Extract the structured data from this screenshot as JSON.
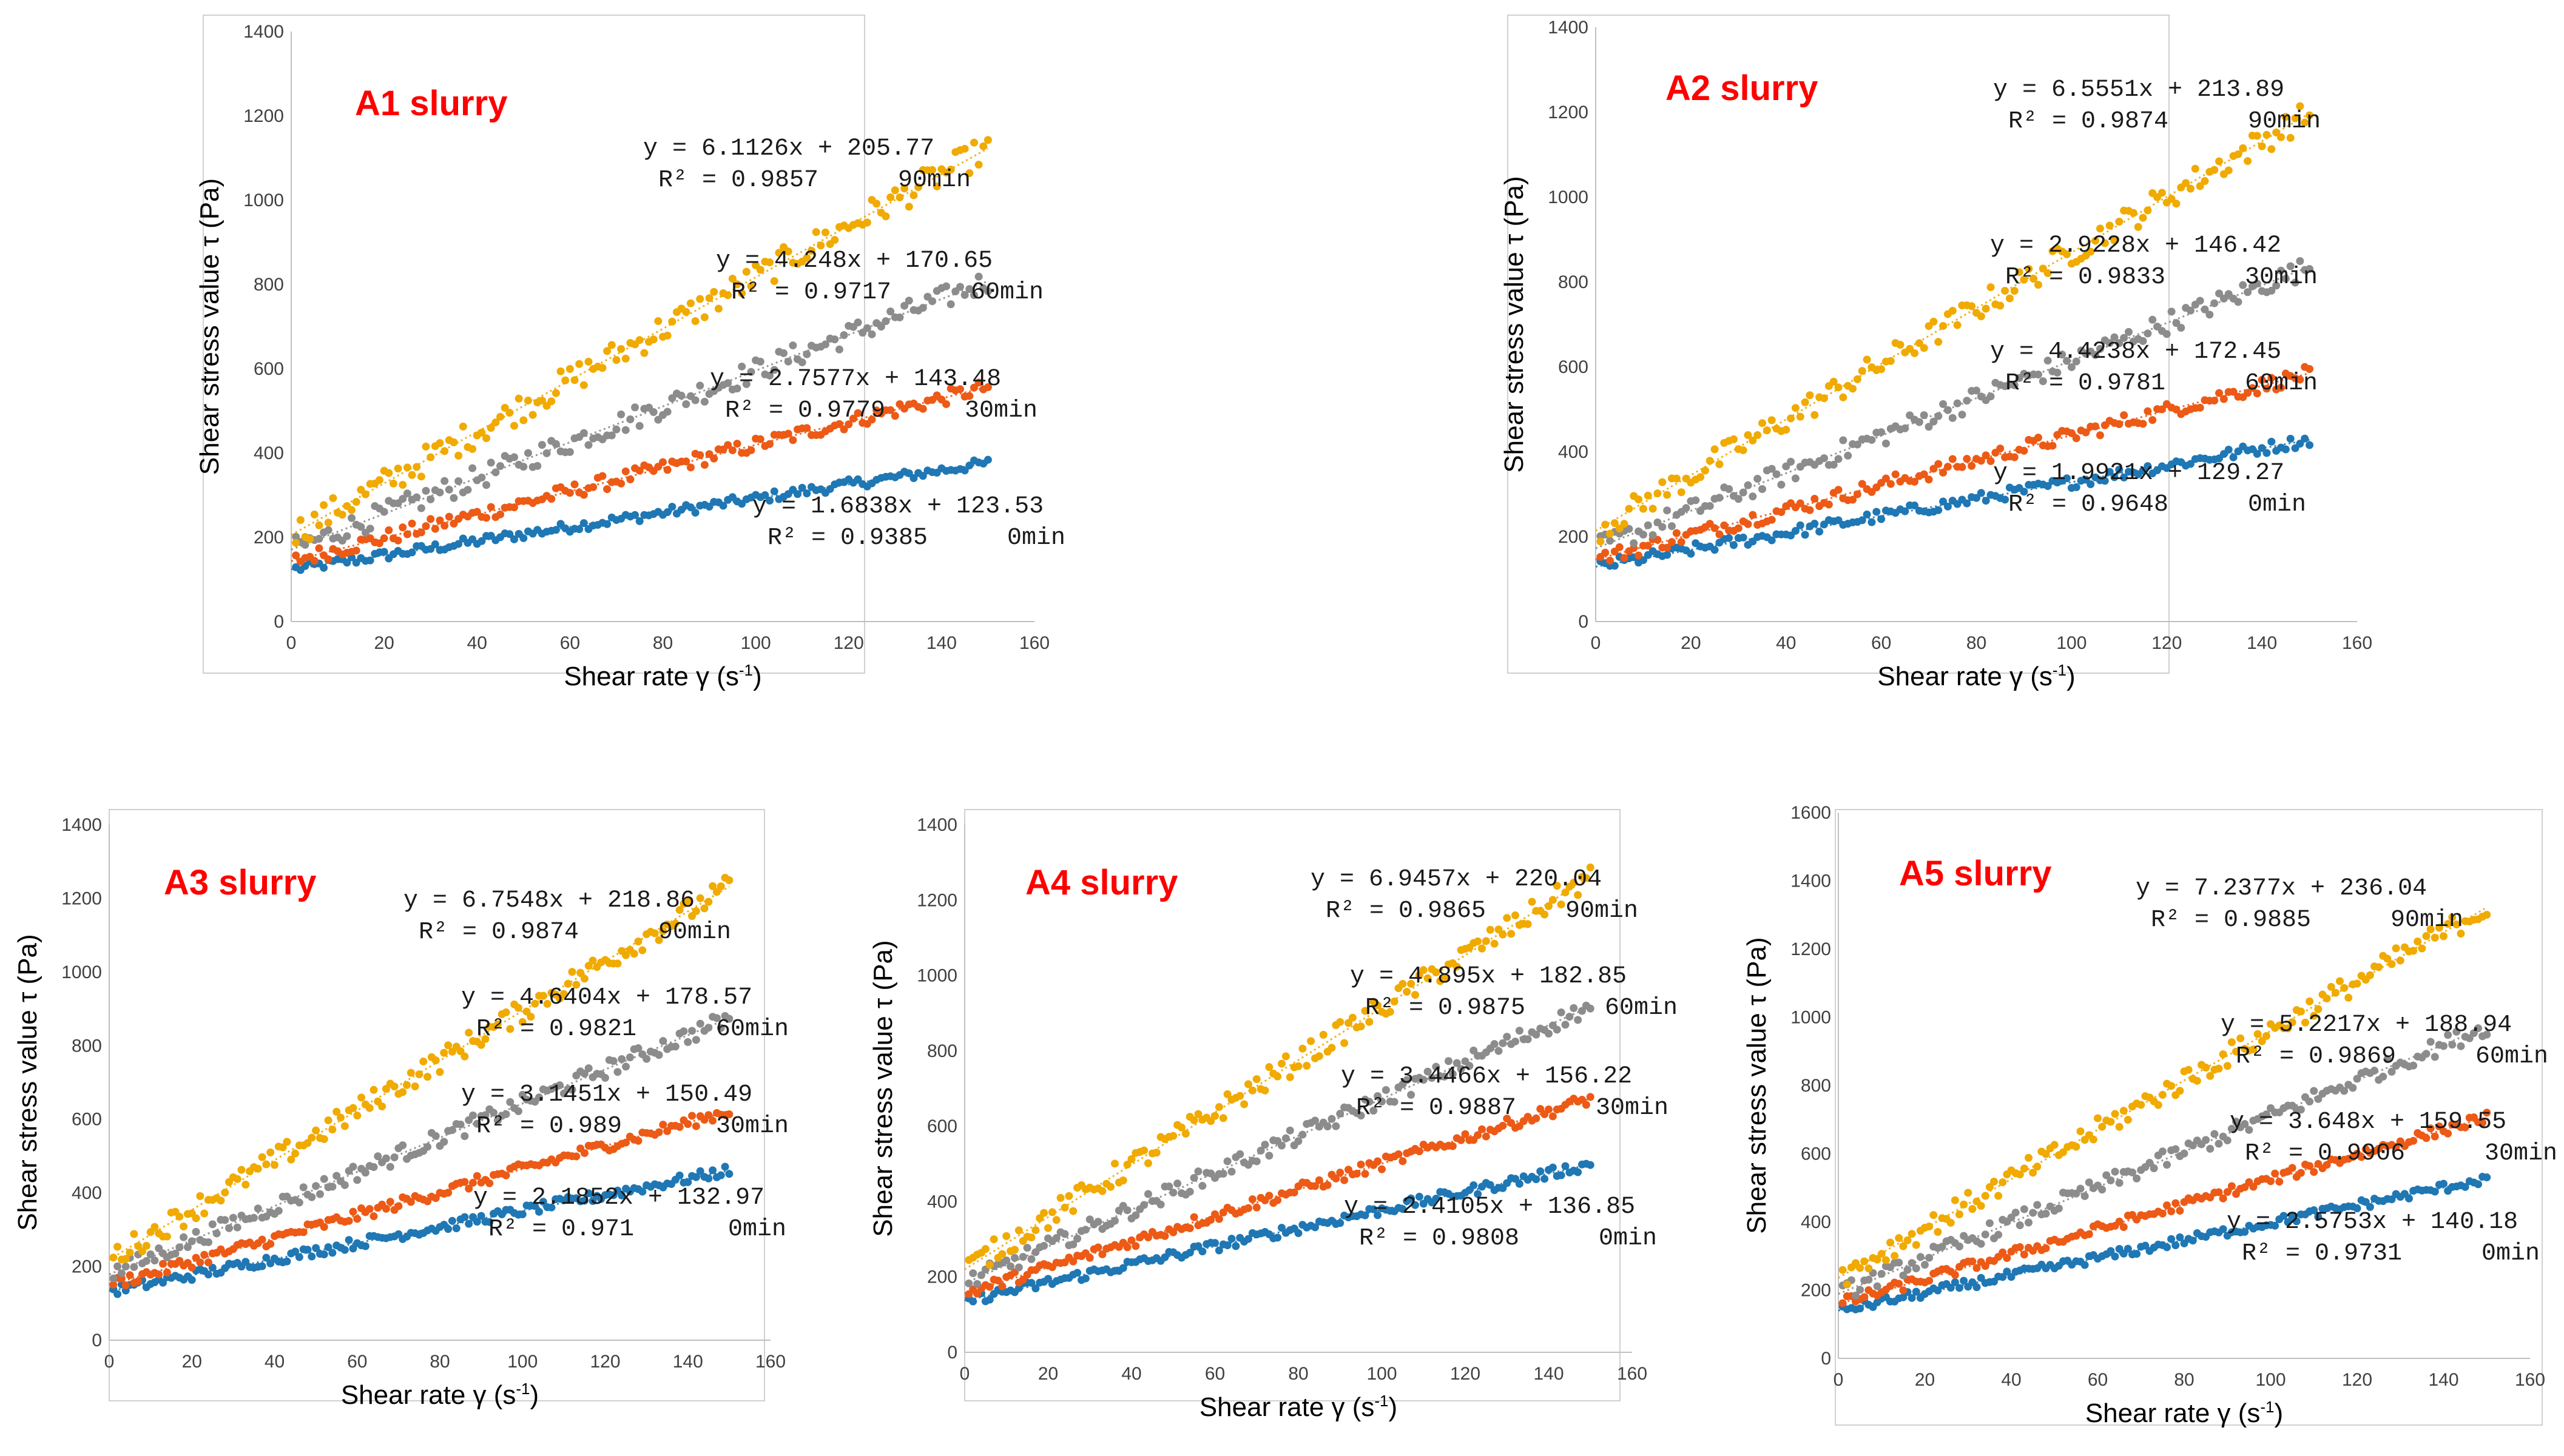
{
  "colors": {
    "0min": "#1f77b4",
    "30min": "#ec5a16",
    "60min": "#8c8c8c",
    "90min": "#f0aa00",
    "title": "#ff0000"
  },
  "chart_data": [
    {
      "type": "scatter",
      "title": "A1 slurry",
      "xlabel": "Shear rate γ (s",
      "xlabel_sup": "-1",
      "xlabel_close": ")",
      "ylabel": "Shear stress value τ (Pa)",
      "xlim": [
        0,
        160
      ],
      "ylim": [
        0,
        1400
      ],
      "xticks": [
        "0",
        "20",
        "40",
        "60",
        "80",
        "100",
        "120",
        "140",
        "160"
      ],
      "yticks": [
        "0",
        "200",
        "400",
        "600",
        "800",
        "1000",
        "1200",
        "1400"
      ],
      "series": [
        {
          "name": "0min",
          "slope": 1.6838,
          "intercept": 123.53,
          "equation": "y = 1.6838x + 123.53",
          "r2": "R² = 0.9385",
          "time": "0min",
          "noise": 12
        },
        {
          "name": "30min",
          "slope": 2.7577,
          "intercept": 143.48,
          "equation": "y = 2.7577x + 143.48",
          "r2": "R² = 0.9779",
          "time": "30min",
          "noise": 18
        },
        {
          "name": "60min",
          "slope": 4.248,
          "intercept": 170.65,
          "equation": "y = 4.248x + 170.65",
          "r2": "R² = 0.9717",
          "time": "60min",
          "noise": 28
        },
        {
          "name": "90min",
          "slope": 6.1126,
          "intercept": 205.77,
          "equation": "y = 6.1126x + 205.77",
          "r2": "R² = 0.9857",
          "time": "90min",
          "noise": 35
        }
      ]
    },
    {
      "type": "scatter",
      "title": "A2 slurry",
      "xlabel": "Shear rate γ (s",
      "xlabel_sup": "-1",
      "xlabel_close": ")",
      "ylabel": "Shear stress value τ (Pa)",
      "xlim": [
        0,
        160
      ],
      "ylim": [
        0,
        1400
      ],
      "xticks": [
        "0",
        "20",
        "40",
        "60",
        "80",
        "100",
        "120",
        "140",
        "160"
      ],
      "yticks": [
        "0",
        "200",
        "400",
        "600",
        "800",
        "1000",
        "1200",
        "1400"
      ],
      "series": [
        {
          "name": "0min",
          "slope": 1.9921,
          "intercept": 129.27,
          "equation": "y = 1.9921x + 129.27",
          "r2": "R² = 0.9648",
          "time": "0min",
          "noise": 14
        },
        {
          "name": "30min",
          "slope": 2.9228,
          "intercept": 146.42,
          "equation": "y = 2.9228x + 146.42",
          "r2": "R² = 0.9833",
          "time": "30min",
          "noise": 18
        },
        {
          "name": "60min",
          "slope": 4.4238,
          "intercept": 172.45,
          "equation": "y = 4.4238x + 172.45",
          "r2": "R² = 0.9781",
          "time": "60min",
          "noise": 26
        },
        {
          "name": "90min",
          "slope": 6.5551,
          "intercept": 213.89,
          "equation": "y = 6.5551x + 213.89",
          "r2": "R² = 0.9874",
          "time": "90min",
          "noise": 32
        }
      ]
    },
    {
      "type": "scatter",
      "title": "A3 slurry",
      "xlabel": "Shear rate γ (s",
      "xlabel_sup": "-1",
      "xlabel_close": ")",
      "ylabel": "Shear stress value τ (Pa)",
      "xlim": [
        0,
        160
      ],
      "ylim": [
        0,
        1400
      ],
      "xticks": [
        "0",
        "20",
        "40",
        "60",
        "80",
        "100",
        "120",
        "140",
        "160"
      ],
      "yticks": [
        "0",
        "200",
        "400",
        "600",
        "800",
        "1000",
        "1200",
        "1400"
      ],
      "series": [
        {
          "name": "0min",
          "slope": 2.1852,
          "intercept": 132.97,
          "equation": "y = 2.1852x + 132.97",
          "r2": "R² = 0.971",
          "time": "0min",
          "noise": 14
        },
        {
          "name": "30min",
          "slope": 3.1451,
          "intercept": 150.49,
          "equation": "y = 3.1451x + 150.49",
          "r2": "R² = 0.989",
          "time": "30min",
          "noise": 16
        },
        {
          "name": "60min",
          "slope": 4.6404,
          "intercept": 178.57,
          "equation": "y = 4.6404x + 178.57",
          "r2": "R² = 0.9821",
          "time": "60min",
          "noise": 24
        },
        {
          "name": "90min",
          "slope": 6.7548,
          "intercept": 218.86,
          "equation": "y = 6.7548x + 218.86",
          "r2": "R² = 0.9874",
          "time": "90min",
          "noise": 32
        }
      ]
    },
    {
      "type": "scatter",
      "title": "A4 slurry",
      "xlabel": "Shear rate γ (s",
      "xlabel_sup": "-1",
      "xlabel_close": ")",
      "ylabel": "Shear stress value τ (Pa)",
      "xlim": [
        0,
        160
      ],
      "ylim": [
        0,
        1400
      ],
      "xticks": [
        "0",
        "20",
        "40",
        "60",
        "80",
        "100",
        "120",
        "140",
        "160"
      ],
      "yticks": [
        "0",
        "200",
        "400",
        "600",
        "800",
        "1000",
        "1200",
        "1400"
      ],
      "series": [
        {
          "name": "0min",
          "slope": 2.4105,
          "intercept": 136.85,
          "equation": "y = 2.4105x + 136.85",
          "r2": "R² = 0.9808",
          "time": "0min",
          "noise": 14
        },
        {
          "name": "30min",
          "slope": 3.4466,
          "intercept": 156.22,
          "equation": "y = 3.4466x + 156.22",
          "r2": "R² = 0.9887",
          "time": "30min",
          "noise": 16
        },
        {
          "name": "60min",
          "slope": 4.895,
          "intercept": 182.85,
          "equation": "y = 4.895x + 182.85",
          "r2": "R² = 0.9875",
          "time": "60min",
          "noise": 24
        },
        {
          "name": "90min",
          "slope": 6.9457,
          "intercept": 220.04,
          "equation": "y = 6.9457x + 220.04",
          "r2": "R² = 0.9865",
          "time": "90min",
          "noise": 32
        }
      ]
    },
    {
      "type": "scatter",
      "title": "A5 slurry",
      "xlabel": "Shear rate γ (s",
      "xlabel_sup": "-1",
      "xlabel_close": ")",
      "ylabel": "Shear stress value τ (Pa)",
      "xlim": [
        0,
        160
      ],
      "ylim": [
        0,
        1600
      ],
      "xticks": [
        "0",
        "20",
        "40",
        "60",
        "80",
        "100",
        "120",
        "140",
        "160"
      ],
      "yticks": [
        "0",
        "200",
        "400",
        "600",
        "800",
        "1000",
        "1200",
        "1400",
        "1600"
      ],
      "series": [
        {
          "name": "0min",
          "slope": 2.5753,
          "intercept": 140.18,
          "equation": "y = 2.5753x + 140.18",
          "r2": "R² = 0.9731",
          "time": "0min",
          "noise": 14
        },
        {
          "name": "30min",
          "slope": 3.648,
          "intercept": 159.55,
          "equation": "y = 3.648x + 159.55",
          "r2": "R² = 0.9906",
          "time": "30min",
          "noise": 16
        },
        {
          "name": "60min",
          "slope": 5.2217,
          "intercept": 188.94,
          "equation": "y = 5.2217x + 188.94",
          "r2": "R² = 0.9869",
          "time": "60min",
          "noise": 26
        },
        {
          "name": "90min",
          "slope": 7.2377,
          "intercept": 236.04,
          "equation": "y = 7.2377x + 236.04",
          "r2": "R² = 0.9885",
          "time": "90min",
          "noise": 34
        }
      ]
    }
  ]
}
